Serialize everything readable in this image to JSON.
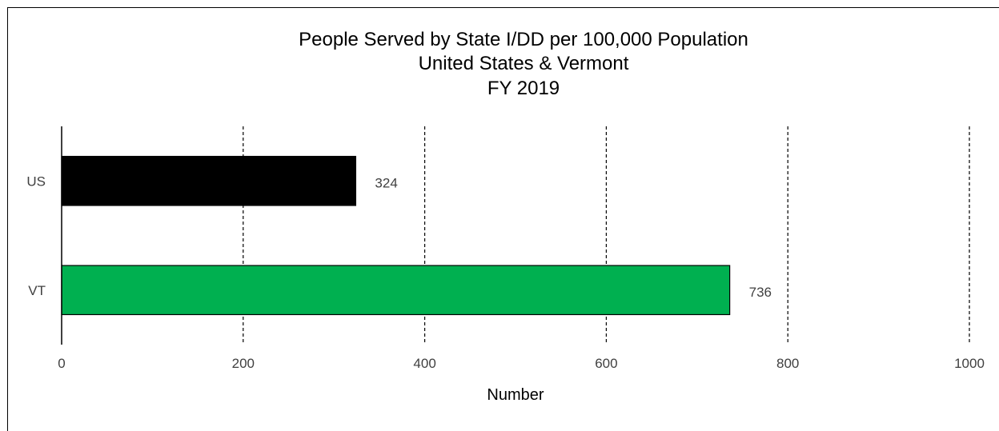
{
  "chart_data": {
    "type": "bar",
    "orientation": "horizontal",
    "title": [
      "People Served by State I/DD per 100,000 Population",
      "United States & Vermont",
      "FY 2019"
    ],
    "categories": [
      "US",
      "VT"
    ],
    "values": [
      324,
      736
    ],
    "data_labels": [
      "324",
      "736"
    ],
    "bar_colors": [
      "#000000",
      "#00b050"
    ],
    "xlabel": "Number",
    "ylabel": "",
    "xlim": [
      0,
      1000
    ],
    "x_ticks": [
      0,
      200,
      400,
      600,
      800,
      1000
    ],
    "x_tick_labels": [
      "0",
      "200",
      "400",
      "600",
      "800",
      "1000"
    ],
    "grid": true,
    "grid_style": "dashed",
    "legend": "none"
  }
}
